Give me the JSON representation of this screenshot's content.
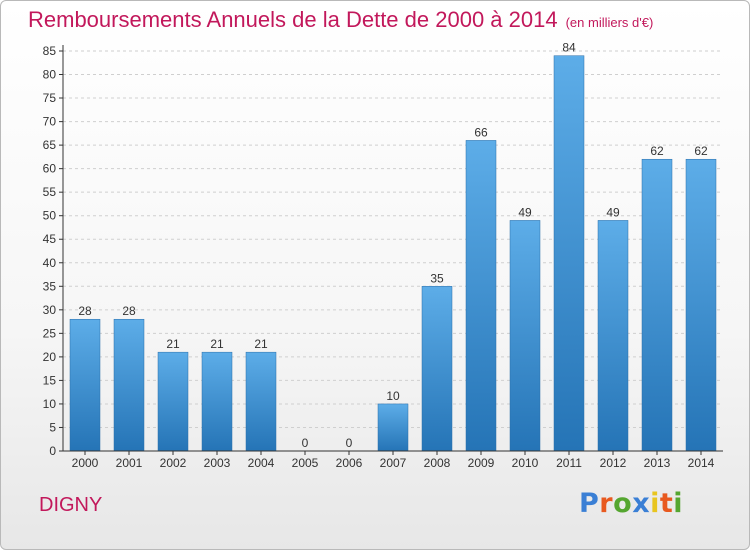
{
  "title": "Remboursements Annuels de la Dette de 2000 à 2014",
  "title_unit": "(en milliers d'€)",
  "commune": "DIGNY",
  "brand": {
    "text": "Proxiti",
    "letter_colors": [
      "#3a7fd5",
      "#e8591f",
      "#55a630",
      "#3a7fd5",
      "#e8c51f",
      "#e8591f",
      "#55a630"
    ]
  },
  "colors": {
    "title": "#c2185b",
    "bar_top": "#5dade8",
    "bar_bottom": "#2574b6",
    "grid": "#cfcfcf",
    "axis": "#333333"
  },
  "chart_data": {
    "type": "bar",
    "title": "Remboursements Annuels de la Dette de 2000 à 2014",
    "categories": [
      "2000",
      "2001",
      "2002",
      "2003",
      "2004",
      "2005",
      "2006",
      "2007",
      "2008",
      "2009",
      "2010",
      "2011",
      "2012",
      "2013",
      "2014"
    ],
    "values": [
      28,
      28,
      21,
      21,
      21,
      0,
      0,
      10,
      35,
      66,
      49,
      84,
      49,
      62,
      62
    ],
    "ylim": [
      0,
      85
    ],
    "yticks": [
      0,
      5,
      10,
      15,
      20,
      25,
      30,
      35,
      40,
      45,
      50,
      55,
      60,
      65,
      70,
      75,
      80,
      85
    ],
    "grid": true,
    "xlabel": "",
    "ylabel": ""
  }
}
